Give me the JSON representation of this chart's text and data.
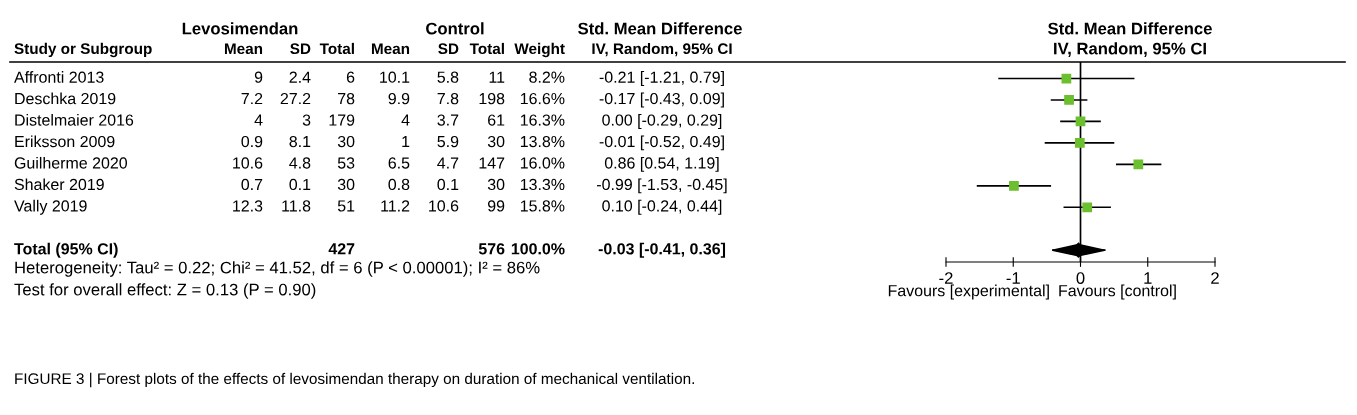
{
  "chart_data": [
    {
      "type": "other",
      "categories": [
        "Study or Subgroup",
        "Mean",
        "SD",
        "Total",
        "Mean",
        "SD",
        "Total",
        "Weight",
        "IV, Random, 95% CI"
      ],
      "y_categories": [
        "Affronti 2013",
        "Deschka 2019",
        "Distelmaier 2016",
        "Eriksson 2009",
        "Guilherme 2020",
        "Shaker 2019",
        "Vally 2019",
        null,
        "Total (95% CI)"
      ],
      "cell_labels": [
        [
          "9",
          "2.4",
          "6",
          "10.1",
          "5.8",
          "11",
          "8.2%",
          "-0.21 [-1.21, 0.79]"
        ],
        [
          "7.2",
          "27.2",
          "78",
          "9.9",
          "7.8",
          "198",
          "16.6%",
          "-0.17 [-0.43, 0.09]"
        ],
        [
          "4",
          "3",
          "179",
          "4",
          "3.7",
          "61",
          "16.3%",
          "0.00 [-0.29, 0.29]"
        ],
        [
          "0.9",
          "8.1",
          "30",
          "1",
          "5.9",
          "30",
          "13.8%",
          "-0.01 [-0.52, 0.49]"
        ],
        [
          "10.6",
          "4.8",
          "53",
          "6.5",
          "4.7",
          "147",
          "16.0%",
          "0.86 [0.54, 1.19]"
        ],
        [
          "0.7",
          "0.1",
          "30",
          "0.8",
          "0.1",
          "30",
          "13.3%",
          "-0.99 [-1.53, -0.45]"
        ],
        [
          "12.3",
          "11.8",
          "51",
          "11.2",
          "10.6",
          "99",
          "15.8%",
          "0.10 [-0.24, 0.44]"
        ],
        [
          null,
          null,
          null,
          null,
          null,
          null,
          null,
          null
        ],
        [
          null,
          null,
          "427",
          null,
          null,
          "576",
          "100.0%",
          "-0.03 [-0.41, 0.36]"
        ]
      ],
      "annotations": [
        "Levosimendan",
        "Control",
        "Std. Mean Difference",
        "Heterogeneity: Tau² = 0.22; Chi² = 41.52, df = 6 (P < 0.00001); I² = 86%",
        "Test for overall effect: Z = 0.13 (P = 0.90)",
        "FIGURE 3 | Forest plots of the effects of levosimendan therapy on duration of mechanical ventilation."
      ]
    },
    {
      "type": "scatter",
      "orientation": "horizontal",
      "title": "Std. Mean Difference",
      "subtitle": "IV, Random, 95% CI",
      "categories": [
        null,
        null,
        null,
        null,
        null,
        null,
        null,
        null,
        null
      ],
      "series": [
        {
          "color": "#6cbf2e",
          "marker": "square",
          "values": [
            -0.21,
            -0.17,
            0.0,
            -0.01,
            0.86,
            -0.99,
            0.1,
            null,
            null
          ],
          "errors": [
            [
              -1.21,
              0.79
            ],
            [
              -0.43,
              0.09
            ],
            [
              -0.29,
              0.29
            ],
            [
              -0.52,
              0.49
            ],
            [
              0.54,
              1.19
            ],
            [
              -1.53,
              -0.45
            ],
            [
              -0.24,
              0.44
            ],
            null,
            null
          ]
        },
        {
          "color": "#000000",
          "marker": "diamond",
          "values": [
            null,
            null,
            null,
            null,
            null,
            null,
            null,
            null,
            -0.03
          ],
          "errors": [
            null,
            null,
            null,
            null,
            null,
            null,
            null,
            null,
            [
              -0.41,
              0.36
            ]
          ]
        }
      ],
      "xlim": [
        -2,
        2
      ],
      "xticks": [
        -2,
        -1,
        0,
        1,
        2
      ],
      "tick_labels": "x",
      "ref_lines": [
        {
          "axis": "x",
          "value": 0,
          "color": "#000000"
        }
      ],
      "annotations": [
        "Favours [experimental]",
        "Favours [control]"
      ]
    }
  ]
}
